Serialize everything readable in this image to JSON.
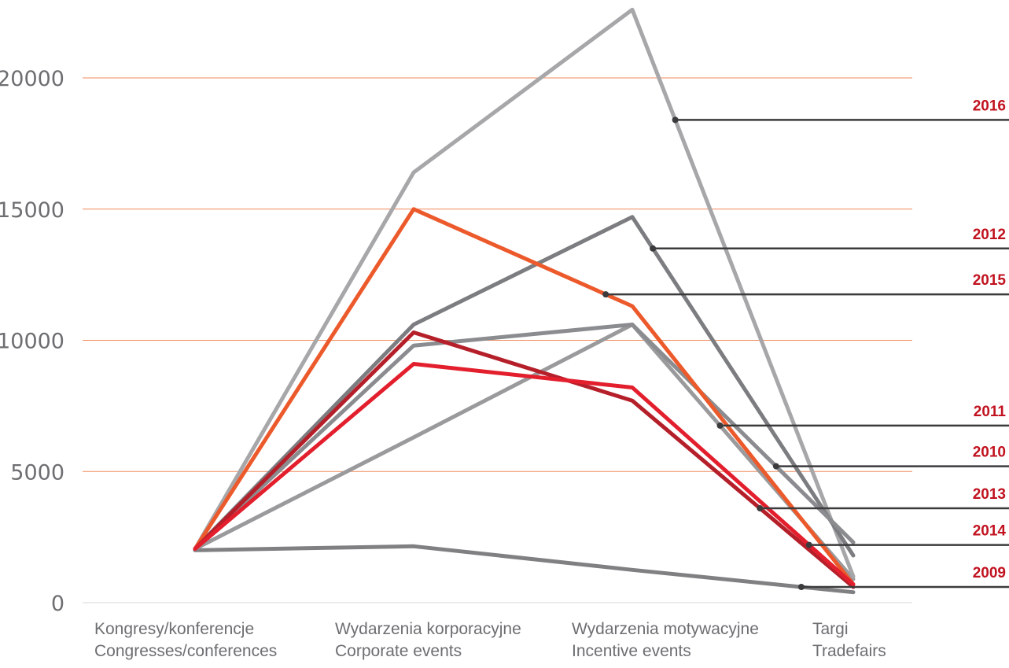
{
  "chart_data": {
    "type": "line",
    "title": "",
    "xlabel": "",
    "ylabel": "",
    "ylim": [
      0,
      22800
    ],
    "yticks": [
      0,
      5000,
      10000,
      15000,
      20000
    ],
    "ytick_labels": [
      "0",
      "5000",
      "10000",
      "15000",
      "20000"
    ],
    "grid": true,
    "legend": "right",
    "categories": [
      {
        "line1": "Kongresy/konferencje",
        "line2": "Congresses/conferences"
      },
      {
        "line1": "Wydarzenia korporacyjne",
        "line2": "Corporate events"
      },
      {
        "line1": "Wydarzenia motywacyjne",
        "line2": "Incentive events"
      },
      {
        "line1": "Targi",
        "line2": "Tradefairs"
      }
    ],
    "series": [
      {
        "name": "2009",
        "color": "#808083",
        "values": [
          2000,
          2150,
          1250,
          400
        ]
      },
      {
        "name": "2011",
        "color": "#9a9a9d",
        "values": [
          2050,
          6300,
          10600,
          900
        ]
      },
      {
        "name": "2016",
        "color": "#a7a7aa",
        "values": [
          2050,
          16400,
          22600,
          1000
        ]
      },
      {
        "name": "2012",
        "color": "#7c7d80",
        "values": [
          2050,
          10600,
          14700,
          1800
        ]
      },
      {
        "name": "2010",
        "color": "#8b8c8f",
        "values": [
          2050,
          9800,
          10600,
          2300
        ]
      },
      {
        "name": "2015",
        "color": "#ec5a2c",
        "values": [
          2050,
          15000,
          11300,
          700
        ]
      },
      {
        "name": "2013",
        "color": "#b51f2a",
        "values": [
          2050,
          10300,
          7700,
          600
        ]
      },
      {
        "name": "2014",
        "color": "#e31f2d",
        "values": [
          2050,
          9100,
          8200,
          700
        ]
      }
    ],
    "callouts": [
      {
        "label": "2016",
        "y": 18400
      },
      {
        "label": "2012",
        "y": 13500
      },
      {
        "label": "2015",
        "y": 11750
      },
      {
        "label": "2011",
        "y": 6750
      },
      {
        "label": "2010",
        "y": 5200
      },
      {
        "label": "2013",
        "y": 3600
      },
      {
        "label": "2014",
        "y": 2200
      },
      {
        "label": "2009",
        "y": 600
      }
    ]
  }
}
